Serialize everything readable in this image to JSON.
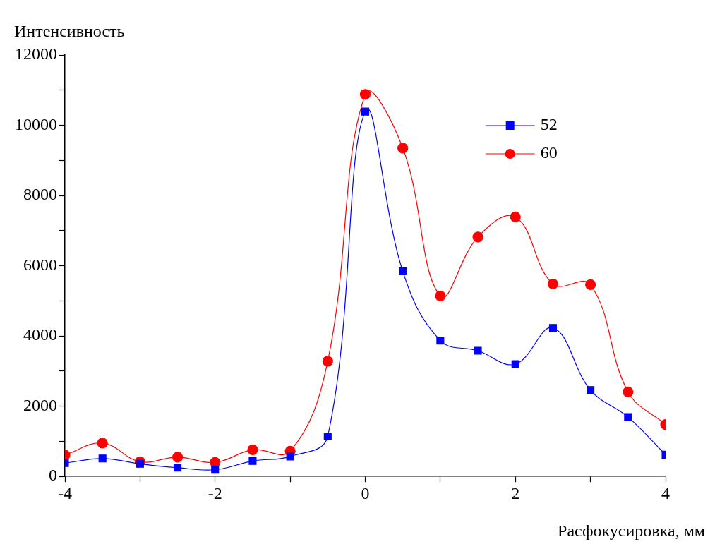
{
  "chart_data": {
    "type": "line",
    "xlabel": "Расфокусировка, мм",
    "ylabel": "Интенсивность",
    "x": [
      -4,
      -3.5,
      -3,
      -2.5,
      -2,
      -1.5,
      -1,
      -0.5,
      0,
      0.5,
      1,
      1.5,
      2,
      2.5,
      3,
      3.5,
      4
    ],
    "series": [
      {
        "name": "52",
        "color": "#0000ff",
        "marker": "square",
        "values": [
          380,
          510,
          360,
          250,
          190,
          440,
          570,
          1140,
          10390,
          5840,
          3870,
          3580,
          3200,
          4230,
          2460,
          1690,
          620
        ]
      },
      {
        "name": "60",
        "color": "#ff0000",
        "marker": "circle",
        "values": [
          610,
          950,
          420,
          550,
          400,
          760,
          720,
          3280,
          10880,
          9350,
          5140,
          6820,
          7390,
          5480,
          5460,
          2410,
          1480
        ]
      }
    ],
    "xlim": [
      -4,
      4
    ],
    "xticks": [
      -4,
      {
        "value": -3,
        "label": null
      },
      -2,
      {
        "value": -1,
        "label": null
      },
      0,
      {
        "value": 1,
        "label": null
      },
      2,
      {
        "value": 3,
        "label": null
      },
      4
    ],
    "ylim": [
      0,
      12000
    ],
    "yticks": [
      0,
      {
        "value": 1000,
        "label": null
      },
      2000,
      {
        "value": 3000,
        "label": null
      },
      4000,
      {
        "value": 5000,
        "label": null
      },
      6000,
      {
        "value": 7000,
        "label": null
      },
      8000,
      {
        "value": 9000,
        "label": null
      },
      10000,
      {
        "value": 11000,
        "label": null
      },
      12000
    ],
    "grid": false,
    "legend": "top right",
    "line_style": "solid"
  }
}
